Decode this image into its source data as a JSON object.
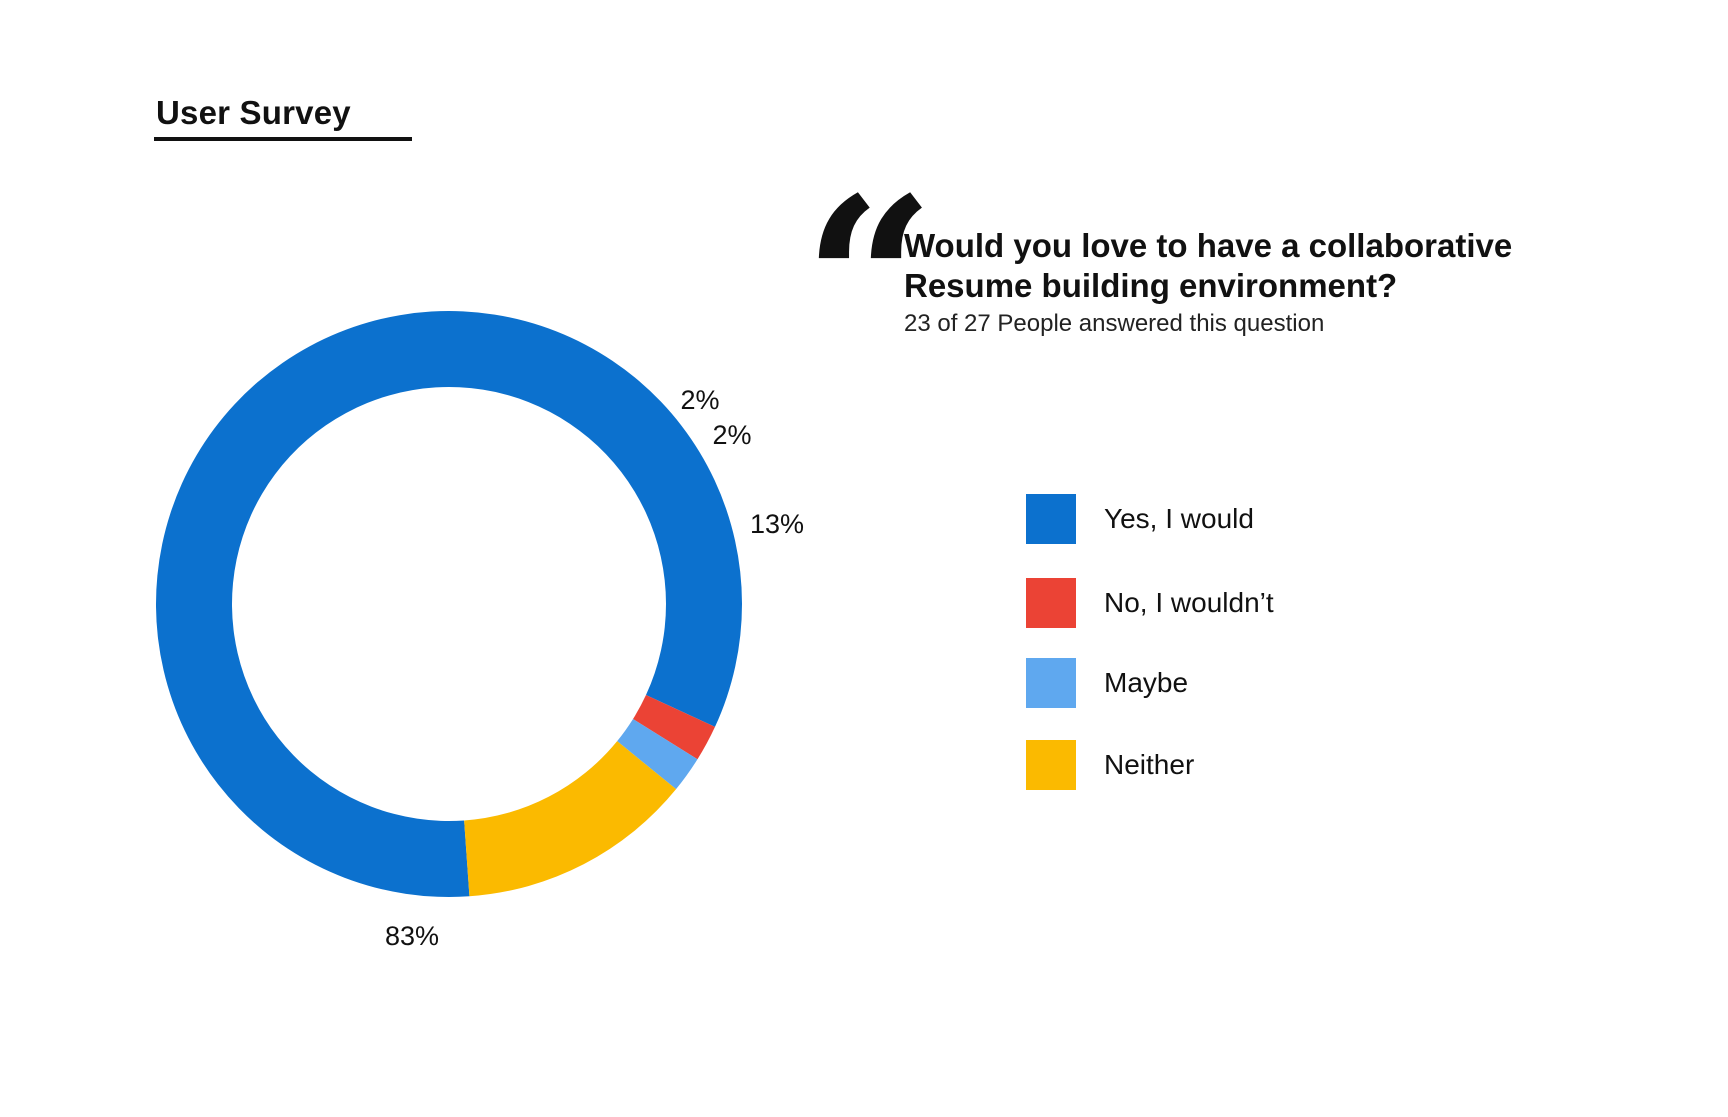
{
  "section": {
    "title": "User Survey"
  },
  "question": {
    "quote_glyph": "“",
    "text": "Would you love to have a collaborative Resume building environment?",
    "answered": "23 of 27 People answered this question"
  },
  "chart_data": {
    "type": "pie",
    "donut": true,
    "legend_position": "right",
    "categories": [
      "Yes, I would",
      "No, I wouldn’t",
      "Maybe",
      "Neither"
    ],
    "values": [
      83,
      2,
      2,
      13
    ],
    "labels": [
      "83%",
      "2%",
      "2%",
      "13%"
    ],
    "colors": [
      "#0c71ce",
      "#eb4335",
      "#5fa8ef",
      "#fbba00"
    ]
  }
}
